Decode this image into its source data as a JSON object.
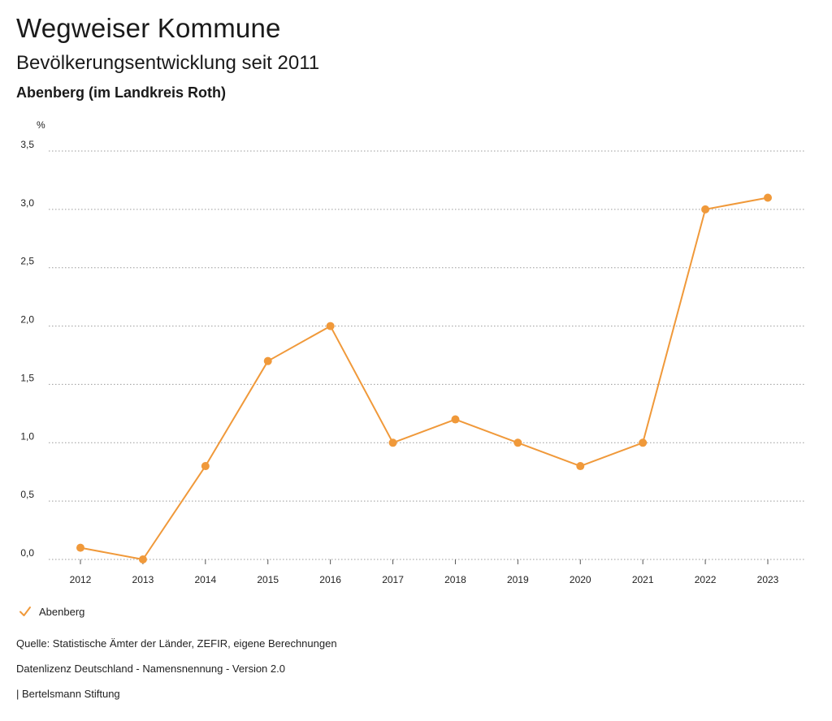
{
  "header": {
    "title": "Wegweiser Kommune",
    "subtitle": "Bevölkerungsentwicklung seit 2011",
    "region": "Abenberg (im Landkreis Roth)"
  },
  "chart_data": {
    "type": "line",
    "title": "Bevölkerungsentwicklung seit 2011",
    "xlabel": "",
    "ylabel": "%",
    "categories": [
      "2012",
      "2013",
      "2014",
      "2015",
      "2016",
      "2017",
      "2018",
      "2019",
      "2020",
      "2021",
      "2022",
      "2023"
    ],
    "series": [
      {
        "name": "Abenberg",
        "color": "#F0993A",
        "values": [
          0.1,
          0.0,
          0.8,
          1.7,
          2.0,
          1.0,
          1.2,
          1.0,
          0.8,
          1.0,
          3.0,
          3.1
        ]
      }
    ],
    "ylim": [
      0,
      3.5
    ],
    "yticks": [
      0,
      0.5,
      1.0,
      1.5,
      2.0,
      2.5,
      3.0,
      3.5
    ],
    "ytick_labels": [
      "0,0",
      "0,5",
      "1,0",
      "1,5",
      "2,0",
      "2,5",
      "3,0",
      "3,5"
    ],
    "grid": true,
    "legend": "bottom-left"
  },
  "legend": {
    "label": "Abenberg",
    "icon": "check-icon",
    "color": "#F0993A"
  },
  "footer": {
    "source": "Quelle: Statistische Ämter der Länder, ZEFIR, eigene Berechnungen",
    "license": "Datenlizenz Deutschland - Namensnennung - Version 2.0",
    "publisher": "| Bertelsmann Stiftung"
  }
}
